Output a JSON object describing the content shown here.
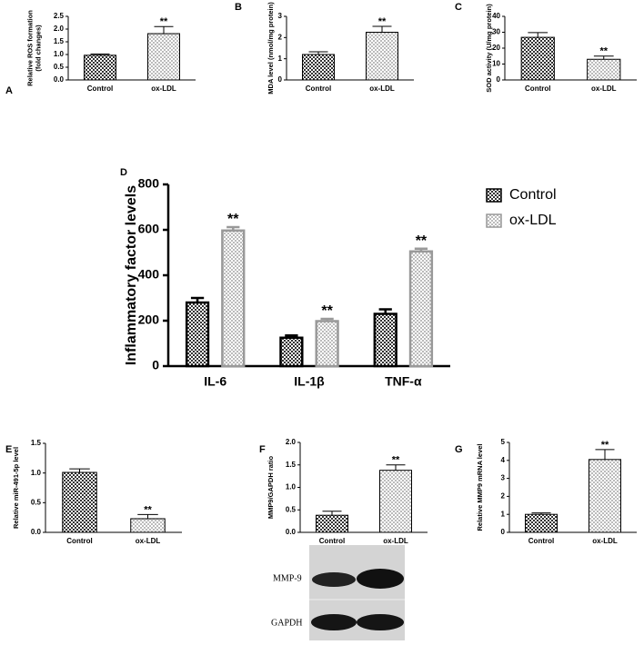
{
  "chart_data": [
    {
      "type": "bar",
      "label": "A",
      "ylabel": [
        "Relative ROS formation",
        "(fold changes)"
      ],
      "categories": [
        "Control",
        "ox-LDL"
      ],
      "values": [
        0.97,
        1.82
      ],
      "errors": [
        0.05,
        0.28
      ],
      "colors": [
        "#333333",
        "#bbbbbb"
      ],
      "ylim": [
        0,
        2.5
      ],
      "yticks": [
        {
          "value": 0,
          "label": "0.0"
        },
        0.5,
        {
          "value": 1,
          "label": "1.0"
        },
        1.5,
        {
          "value": 2,
          "label": "2.0"
        },
        2.5
      ],
      "annotation": "**"
    },
    {
      "type": "bar",
      "label": "B",
      "ylabel": "MDA level (nmol/mg protein)",
      "categories": [
        "Control",
        "ox-LDL"
      ],
      "values": [
        1.2,
        2.25
      ],
      "errors": [
        0.13,
        0.28
      ],
      "colors": [
        "#333333",
        "#bbbbbb"
      ],
      "ylim": [
        0,
        3
      ],
      "yticks": [
        0,
        1,
        2,
        3
      ],
      "annotation": "**"
    },
    {
      "type": "bar",
      "label": "C",
      "ylabel": "SOD activity (U/mg protein)",
      "categories": [
        "Control",
        "ox-LDL"
      ],
      "values": [
        26.8,
        13
      ],
      "errors": [
        3,
        2
      ],
      "colors": [
        "#333333",
        "#bbbbbb"
      ],
      "ylim": [
        0,
        40
      ],
      "yticks": [
        0,
        10,
        20,
        30,
        40
      ],
      "annotation": "**"
    },
    {
      "type": "bar",
      "label": "D",
      "ylabel": "Inflammatory factor levels",
      "categories": [
        "IL-6",
        "IL-1β",
        "TNF-α"
      ],
      "series": [
        {
          "name": "Control",
          "color": "#333333",
          "values": [
            280,
            125,
            230
          ],
          "errors": [
            20,
            10,
            20
          ]
        },
        {
          "name": "ox-LDL",
          "color": "#bbbbbb",
          "values": [
            597,
            198,
            505
          ],
          "errors": [
            15,
            10,
            12
          ]
        }
      ],
      "ylim": [
        0,
        800
      ],
      "yticks": [
        0,
        200,
        400,
        600,
        800
      ],
      "legend": "right",
      "annotation": "**"
    },
    {
      "type": "bar",
      "label": "E",
      "ylabel": "Relative miR-491-5p level",
      "categories": [
        "Control",
        "ox-LDL"
      ],
      "values": [
        1.01,
        0.23
      ],
      "errors": [
        0.06,
        0.07
      ],
      "colors": [
        "#333333",
        "#bbbbbb"
      ],
      "ylim": [
        0,
        1.5
      ],
      "yticks": [
        {
          "value": 0,
          "label": "0.0"
        },
        0.5,
        {
          "value": 1,
          "label": "1.0"
        },
        1.5
      ],
      "annotation": "**"
    },
    {
      "type": "bar",
      "label": "F",
      "ylabel": "MMP9/GAPDH ratio",
      "categories": [
        "Control",
        "ox-LDL"
      ],
      "values": [
        0.38,
        1.38
      ],
      "errors": [
        0.09,
        0.12
      ],
      "colors": [
        "#333333",
        "#bbbbbb"
      ],
      "ylim": [
        0,
        2
      ],
      "yticks": [
        {
          "value": 0,
          "label": "0.0"
        },
        0.5,
        {
          "value": 1,
          "label": "1.0"
        },
        1.5,
        {
          "value": 2,
          "label": "2.0"
        }
      ],
      "annotation": "**"
    },
    {
      "type": "bar",
      "label": "G",
      "ylabel": "Relative MMP9 mRNA level",
      "categories": [
        "Control",
        "ox-LDL"
      ],
      "values": [
        1.0,
        4.05
      ],
      "errors": [
        0.08,
        0.55
      ],
      "colors": [
        "#333333",
        "#bbbbbb"
      ],
      "ylim": [
        0,
        5
      ],
      "yticks": [
        0,
        1,
        2,
        3,
        4,
        5
      ],
      "annotation": "**"
    }
  ],
  "blot": {
    "labels": [
      "MMP-9",
      "GAPDH"
    ]
  }
}
